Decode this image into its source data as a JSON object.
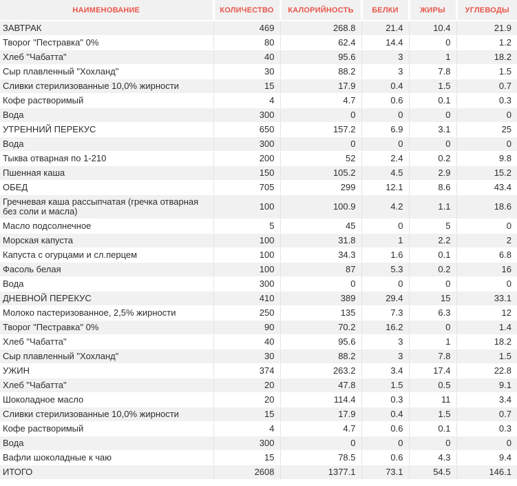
{
  "theme": {
    "header_bg": "#f1f1f1",
    "header_text_color": "#e8564b",
    "row_stripe_bg": "#f1f1f1",
    "row_bg": "#ffffff",
    "cell_text_color": "#2d2d2d",
    "grid_line_color": "#e3e3e3"
  },
  "table": {
    "columns": [
      {
        "key": "name",
        "label": "НАИМЕНОВАНИЕ"
      },
      {
        "key": "qty",
        "label": "КОЛИЧЕСТВО"
      },
      {
        "key": "cal",
        "label": "КАЛОРИЙНОСТЬ"
      },
      {
        "key": "protein",
        "label": "БЕЛКИ"
      },
      {
        "key": "fat",
        "label": "ЖИРЫ"
      },
      {
        "key": "carbs",
        "label": "УГЛЕВОДЫ"
      }
    ],
    "rows": [
      {
        "name": "ЗАВТРАК",
        "section": true,
        "values": [
          "469",
          "268.8",
          "21.4",
          "10.4",
          "21.9"
        ]
      },
      {
        "name": "Творог \"Пестравка\" 0%",
        "values": [
          "80",
          "62.4",
          "14.4",
          "0",
          "1.2"
        ]
      },
      {
        "name": "Хлеб \"Чабатта\"",
        "values": [
          "40",
          "95.6",
          "3",
          "1",
          "18.2"
        ]
      },
      {
        "name": "Сыр плавленный \"Хохланд\"",
        "values": [
          "30",
          "88.2",
          "3",
          "7.8",
          "1.5"
        ]
      },
      {
        "name": "Сливки стерилизованные 10,0% жирности",
        "values": [
          "15",
          "17.9",
          "0.4",
          "1.5",
          "0.7"
        ]
      },
      {
        "name": "Кофе растворимый",
        "values": [
          "4",
          "4.7",
          "0.6",
          "0.1",
          "0.3"
        ]
      },
      {
        "name": "Вода",
        "values": [
          "300",
          "0",
          "0",
          "0",
          "0"
        ]
      },
      {
        "name": "УТРЕННИЙ ПЕРЕКУС",
        "section": true,
        "values": [
          "650",
          "157.2",
          "6.9",
          "3.1",
          "25"
        ]
      },
      {
        "name": "Вода",
        "values": [
          "300",
          "0",
          "0",
          "0",
          "0"
        ]
      },
      {
        "name": "Тыква отварная по 1-210",
        "values": [
          "200",
          "52",
          "2.4",
          "0.2",
          "9.8"
        ]
      },
      {
        "name": "Пшенная каша",
        "values": [
          "150",
          "105.2",
          "4.5",
          "2.9",
          "15.2"
        ]
      },
      {
        "name": "ОБЕД",
        "section": true,
        "values": [
          "705",
          "299",
          "12.1",
          "8.6",
          "43.4"
        ]
      },
      {
        "name": "Гречневая каша рассыпчатая (гречка отварная без соли и масла)",
        "values": [
          "100",
          "100.9",
          "4.2",
          "1.1",
          "18.6"
        ]
      },
      {
        "name": "Масло подсолнечное",
        "values": [
          "5",
          "45",
          "0",
          "5",
          "0"
        ]
      },
      {
        "name": "Морская капуста",
        "values": [
          "100",
          "31.8",
          "1",
          "2.2",
          "2"
        ]
      },
      {
        "name": "Капуста с огурцами и сл.перцем",
        "values": [
          "100",
          "34.3",
          "1.6",
          "0.1",
          "6.8"
        ]
      },
      {
        "name": "Фасоль белая",
        "values": [
          "100",
          "87",
          "5.3",
          "0.2",
          "16"
        ]
      },
      {
        "name": "Вода",
        "values": [
          "300",
          "0",
          "0",
          "0",
          "0"
        ]
      },
      {
        "name": "ДНЕВНОЙ ПЕРЕКУС",
        "section": true,
        "values": [
          "410",
          "389",
          "29.4",
          "15",
          "33.1"
        ]
      },
      {
        "name": "Молоко пастеризованное, 2,5% жирности",
        "values": [
          "250",
          "135",
          "7.3",
          "6.3",
          "12"
        ]
      },
      {
        "name": "Творог \"Пестравка\" 0%",
        "values": [
          "90",
          "70.2",
          "16.2",
          "0",
          "1.4"
        ]
      },
      {
        "name": "Хлеб \"Чабатта\"",
        "values": [
          "40",
          "95.6",
          "3",
          "1",
          "18.2"
        ]
      },
      {
        "name": "Сыр плавленный \"Хохланд\"",
        "values": [
          "30",
          "88.2",
          "3",
          "7.8",
          "1.5"
        ]
      },
      {
        "name": "УЖИН",
        "section": true,
        "values": [
          "374",
          "263.2",
          "3.4",
          "17.4",
          "22.8"
        ]
      },
      {
        "name": "Хлеб \"Чабатта\"",
        "values": [
          "20",
          "47.8",
          "1.5",
          "0.5",
          "9.1"
        ]
      },
      {
        "name": "Шоколадное масло",
        "values": [
          "20",
          "114.4",
          "0.3",
          "11",
          "3.4"
        ]
      },
      {
        "name": "Сливки стерилизованные 10,0% жирности",
        "values": [
          "15",
          "17.9",
          "0.4",
          "1.5",
          "0.7"
        ]
      },
      {
        "name": "Кофе растворимый",
        "values": [
          "4",
          "4.7",
          "0.6",
          "0.1",
          "0.3"
        ]
      },
      {
        "name": "Вода",
        "values": [
          "300",
          "0",
          "0",
          "0",
          "0"
        ]
      },
      {
        "name": "Вафли шоколадные к чаю",
        "values": [
          "15",
          "78.5",
          "0.6",
          "4.3",
          "9.4"
        ]
      },
      {
        "name": "ИТОГО",
        "section": true,
        "total": true,
        "values": [
          "2608",
          "1377.1",
          "73.1",
          "54.5",
          "146.1"
        ]
      }
    ]
  }
}
